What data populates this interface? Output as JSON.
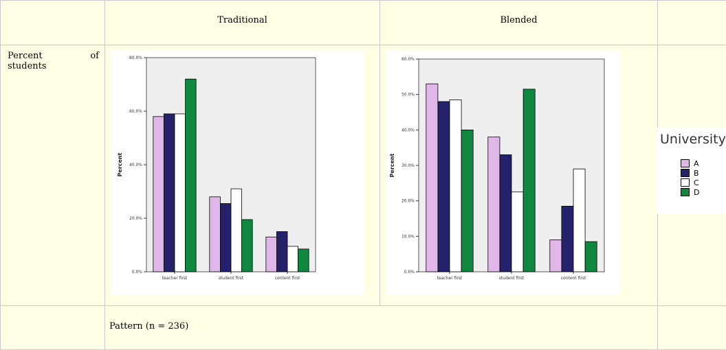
{
  "table": {
    "header_traditional": "Traditional",
    "header_blended": "Blended",
    "row_label_part1": "Percent",
    "row_label_part2": "of",
    "row_label_part3": "students",
    "footer": "Pattern (n = 236)"
  },
  "legend": {
    "title": "University",
    "items": [
      {
        "label": "A",
        "color": "#e1b7ea"
      },
      {
        "label": "B",
        "color": "#23226a"
      },
      {
        "label": "C",
        "color": "#ffffff"
      },
      {
        "label": "D",
        "color": "#10873f"
      }
    ]
  },
  "chart_data": [
    {
      "type": "bar",
      "categories": [
        "teacher first",
        "student first",
        "content first"
      ],
      "ylabel": "Percent",
      "ylim": [
        0,
        80
      ],
      "yticks": [
        "0.0%",
        "20.0%",
        "40.0%",
        "60.0%",
        "80.0%"
      ],
      "series": [
        {
          "name": "A",
          "values": [
            58.0,
            28.0,
            13.0
          ]
        },
        {
          "name": "B",
          "values": [
            59.0,
            25.5,
            15.0
          ]
        },
        {
          "name": "C",
          "values": [
            59.0,
            31.0,
            9.5
          ]
        },
        {
          "name": "D",
          "values": [
            72.0,
            19.5,
            8.5
          ]
        }
      ]
    },
    {
      "type": "bar",
      "categories": [
        "teacher first",
        "student first",
        "content first"
      ],
      "ylabel": "Percent",
      "ylim": [
        0,
        60
      ],
      "yticks": [
        "0.0%",
        "10.0%",
        "20.0%",
        "30.0%",
        "40.0%",
        "50.0%",
        "60.0%"
      ],
      "series": [
        {
          "name": "A",
          "values": [
            53.0,
            38.0,
            9.0
          ]
        },
        {
          "name": "B",
          "values": [
            48.0,
            33.0,
            18.5
          ]
        },
        {
          "name": "C",
          "values": [
            48.5,
            22.5,
            29.0
          ]
        },
        {
          "name": "D",
          "values": [
            40.0,
            51.5,
            8.5
          ]
        }
      ]
    }
  ]
}
